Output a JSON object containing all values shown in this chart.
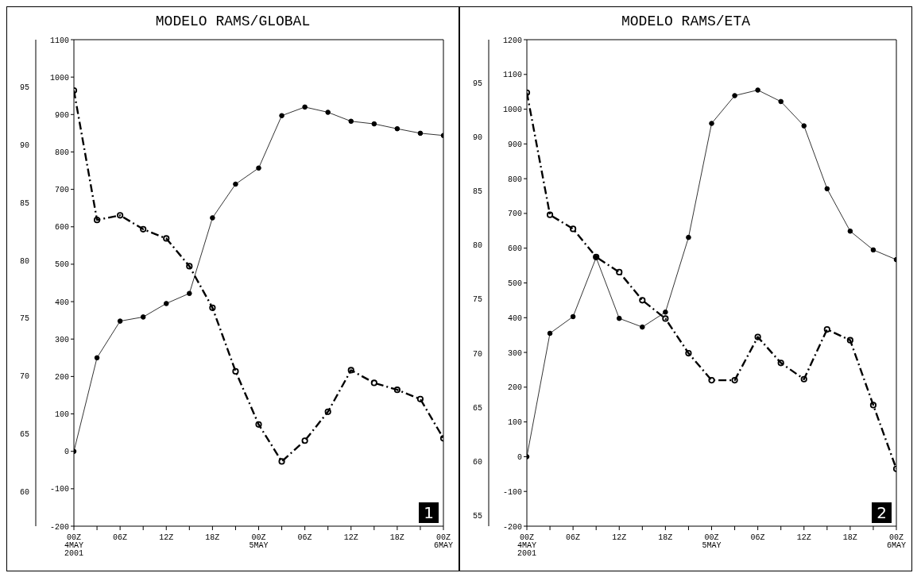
{
  "chart_data": [
    {
      "type": "line",
      "title": "MODELO RAMS/GLOBAL",
      "categories": [
        "00Z\n4MAY\n2001",
        null,
        "06Z",
        null,
        "12Z",
        null,
        "18Z",
        null,
        "00Z\n5MAY",
        null,
        "06Z",
        null,
        "12Z",
        null,
        "18Z",
        null,
        "00Z\n6MAY"
      ],
      "series": [
        {
          "color": "#000000",
          "line_style": "solid",
          "values": [
            0,
            250,
            348,
            359,
            395,
            422,
            624,
            714,
            757,
            897,
            920,
            906,
            882,
            875,
            862,
            850,
            844
          ]
        },
        {
          "color": "#000000",
          "line_style": "dashed",
          "axis": "y2",
          "values": [
            94.7,
            83.5,
            83.9,
            82.7,
            81.9,
            79.5,
            75.9,
            70.4,
            65.8,
            62.6,
            64.4,
            66.9,
            70.5,
            69.4,
            68.8,
            68.0,
            64.6
          ]
        }
      ],
      "ylim": [
        -200,
        1100
      ],
      "yticks": [
        -200,
        -100,
        0,
        100,
        200,
        300,
        400,
        500,
        600,
        700,
        800,
        900,
        1000,
        1100
      ],
      "y2lim": [
        57,
        99.1
      ],
      "y2ticks": [
        60,
        65,
        70,
        75,
        80,
        85,
        90,
        95
      ],
      "marker": "circle",
      "annotations": [
        "1"
      ]
    },
    {
      "type": "line",
      "title": "MODELO RAMS/ETA",
      "categories": [
        "00Z\n4MAY\n2001",
        null,
        "06Z",
        null,
        "12Z",
        null,
        "18Z",
        null,
        "00Z\n5MAY",
        null,
        "06Z",
        null,
        "12Z",
        null,
        "18Z",
        null,
        "00Z\n6MAY"
      ],
      "series": [
        {
          "color": "#000000",
          "line_style": "solid",
          "values": [
            0,
            355,
            403,
            573,
            398,
            373,
            416,
            631,
            959,
            1039,
            1055,
            1022,
            952,
            771,
            649,
            595,
            567
          ]
        },
        {
          "color": "#000000",
          "line_style": "dashed",
          "axis": "y2",
          "values": [
            94.1,
            82.8,
            81.5,
            78.9,
            77.5,
            74.9,
            73.2,
            70.0,
            67.5,
            67.5,
            71.5,
            69.1,
            67.6,
            72.2,
            71.2,
            65.2,
            59.3
          ]
        }
      ],
      "ylim": [
        -200,
        1200
      ],
      "yticks": [
        -200,
        -100,
        0,
        100,
        200,
        300,
        400,
        500,
        600,
        700,
        800,
        900,
        1000,
        1100,
        1200
      ],
      "y2lim": [
        54,
        99
      ],
      "y2ticks": [
        55,
        60,
        65,
        70,
        75,
        80,
        85,
        90,
        95
      ],
      "marker": "circle",
      "annotations": [
        "2"
      ]
    }
  ]
}
